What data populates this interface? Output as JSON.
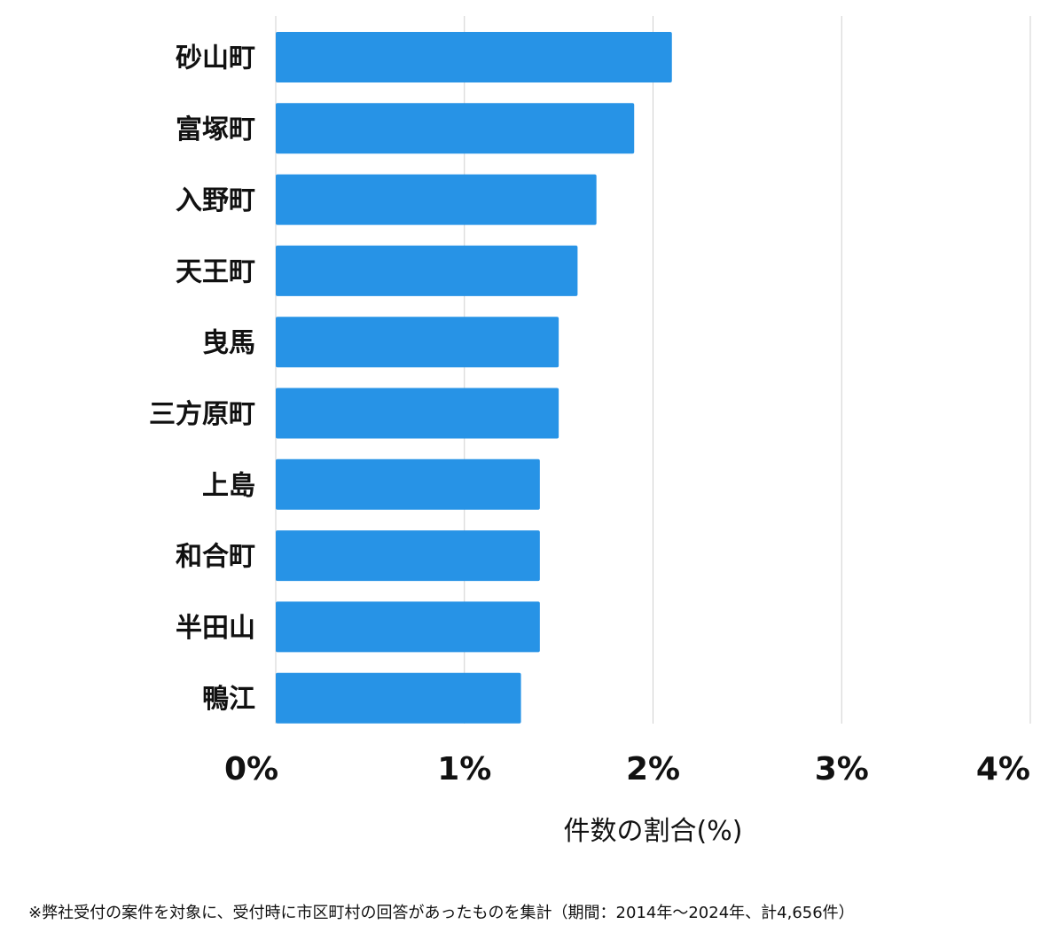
{
  "chart_data": {
    "type": "bar",
    "orientation": "horizontal",
    "categories": [
      "砂山町",
      "富塚町",
      "入野町",
      "天王町",
      "曳馬",
      "三方原町",
      "上島",
      "和合町",
      "半田山",
      "鴨江"
    ],
    "values": [
      2.1,
      1.9,
      1.7,
      1.6,
      1.5,
      1.5,
      1.4,
      1.4,
      1.4,
      1.3
    ],
    "xlabel": "件数の割合(%)",
    "ylabel": "",
    "xlim": [
      0,
      4
    ],
    "ticks": [
      0,
      1,
      2,
      3,
      4
    ],
    "tick_labels": [
      "0%",
      "1%",
      "2%",
      "3%",
      "4%"
    ],
    "grid": true,
    "legend": "none",
    "bar_color": "#2793e6",
    "grid_color": "#d0d0d0"
  },
  "footnote": "※弊社受付の案件を対象に、受付時に市区町村の回答があったものを集計（期間：2014年～2024年、計4,656件）"
}
